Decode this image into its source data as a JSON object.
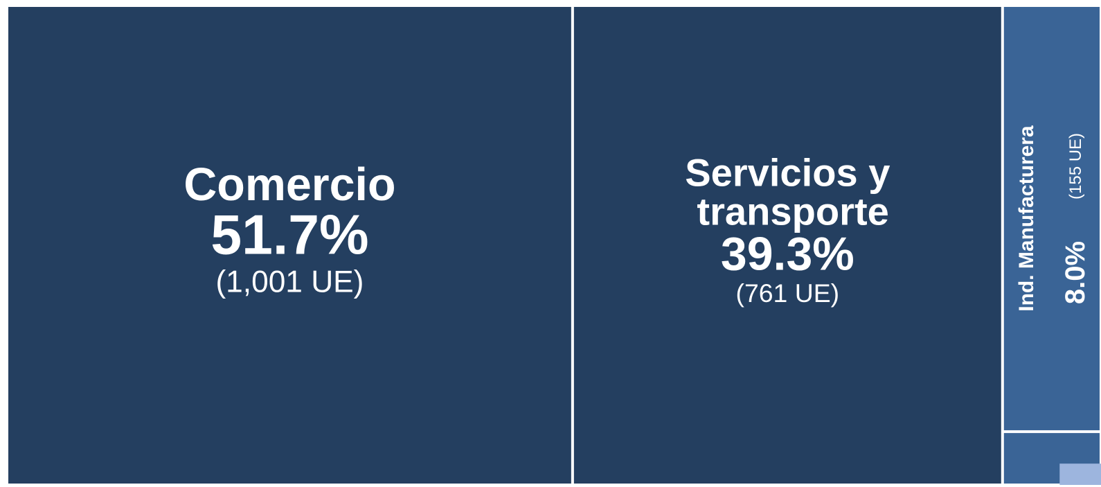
{
  "chart_data": {
    "type": "treemap",
    "categories": [
      "Comercio",
      "Servicios y transporte",
      "Ind. Manufacturera",
      null
    ],
    "values": [
      51.7,
      39.3,
      8.0,
      1.0
    ],
    "value_labels": [
      "51.7%",
      "39.3%",
      "8.0%",
      null
    ],
    "counts": [
      1001,
      761,
      155,
      null
    ],
    "count_labels": [
      "(1,001 UE)",
      "(761 UE)",
      "(155 UE)",
      null
    ],
    "colors": [
      "#243f60",
      "#243f60",
      "#3a6496",
      "#3a6496"
    ]
  }
}
